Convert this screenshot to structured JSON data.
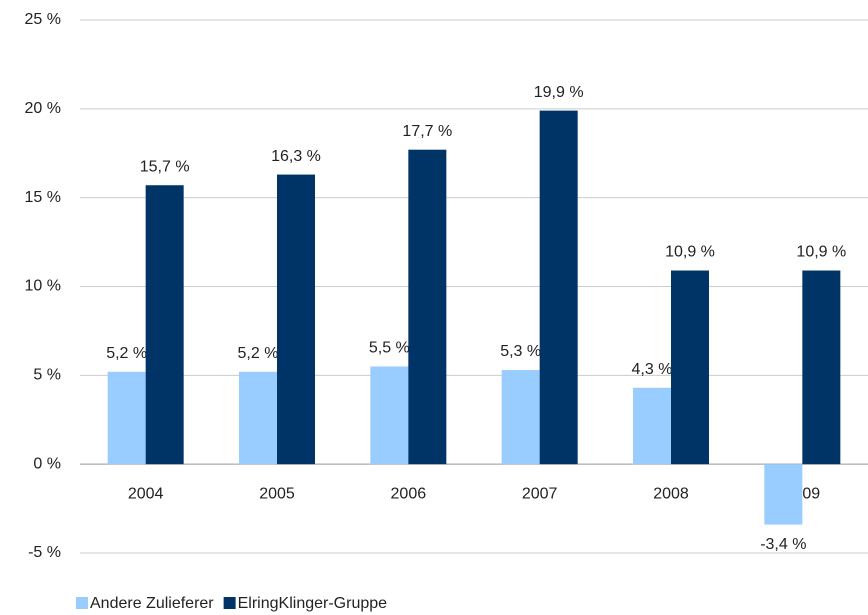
{
  "chart_data": {
    "type": "bar",
    "categories": [
      "2004",
      "2005",
      "2006",
      "2007",
      "2008",
      "2009"
    ],
    "series": [
      {
        "name": "Andere Zulieferer",
        "color": "#99ccff",
        "values": [
          5.2,
          5.2,
          5.5,
          5.3,
          4.3,
          -3.4
        ],
        "value_labels": [
          "5,2 %",
          "5,2 %",
          "5,5 %",
          "5,3 %",
          "4,3 %",
          "-3,4 %"
        ]
      },
      {
        "name": "ElringKlinger-Gruppe",
        "color": "#003366",
        "values": [
          15.7,
          16.3,
          17.7,
          19.9,
          10.9,
          10.9
        ],
        "value_labels": [
          "15,7 %",
          "16,3 %",
          "17,7 %",
          "19,9 %",
          "10,9 %",
          "10,9 %"
        ]
      }
    ],
    "ylim": [
      -5,
      25
    ],
    "yticks": [
      {
        "value": -5,
        "label": "-5 %"
      },
      {
        "value": 0,
        "label": "0 %"
      },
      {
        "value": 5,
        "label": "5 %"
      },
      {
        "value": 10,
        "label": "10 %"
      },
      {
        "value": 15,
        "label": "15 %"
      },
      {
        "value": 20,
        "label": "20 %"
      },
      {
        "value": 25,
        "label": "25 %"
      }
    ],
    "grid": true,
    "legend": "bottom-left"
  }
}
